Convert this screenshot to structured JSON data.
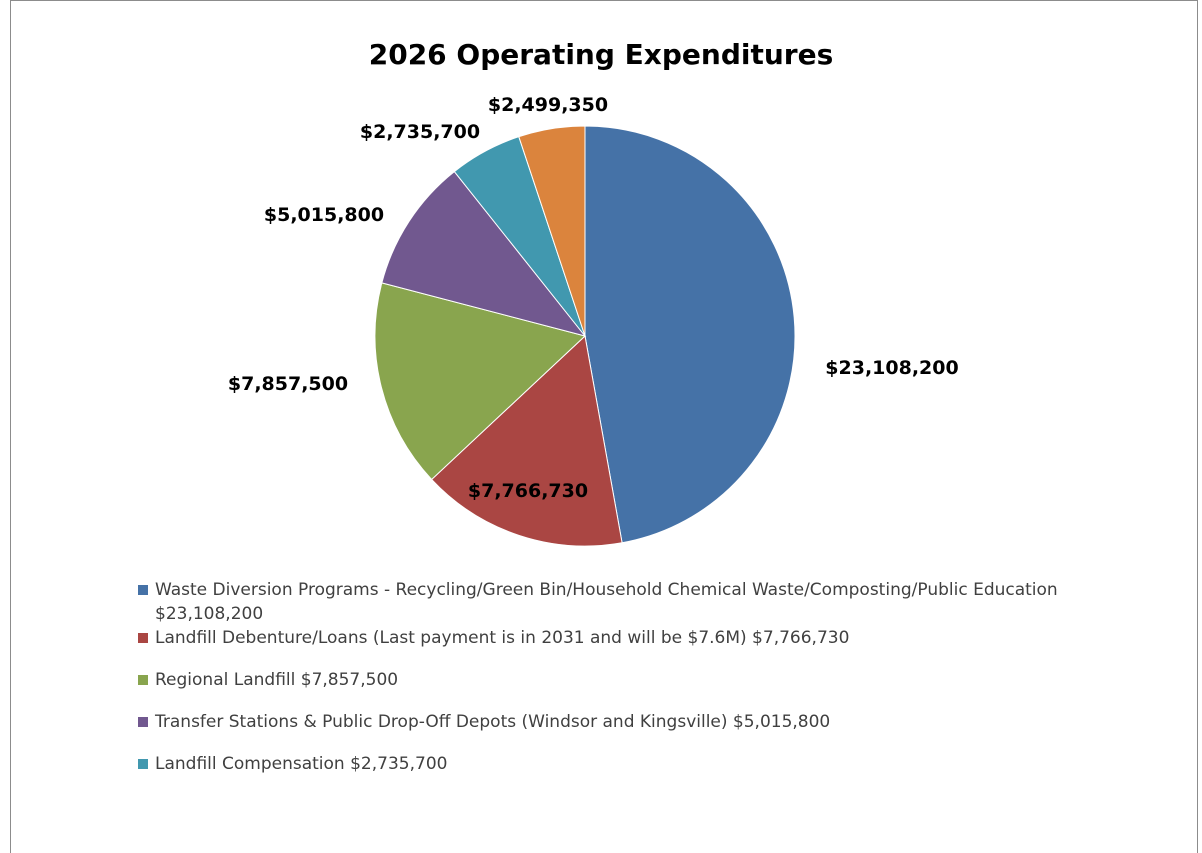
{
  "chart_data": {
    "type": "pie",
    "title": "2026 Operating Expenditures",
    "slices": [
      {
        "label": "Waste Diversion Programs - Recycling/Green Bin/Household Chemical Waste/Composting/Public Education $23,108,200",
        "value": 23108200,
        "data_label": "$23,108,200",
        "color": "#4572A7"
      },
      {
        "label": "Landfill Debenture/Loans (Last payment is in 2031 and will be $7.6M) $7,766,730",
        "value": 7766730,
        "data_label": "$7,766,730",
        "color": "#AA4643"
      },
      {
        "label": "Regional Landfill $7,857,500",
        "value": 7857500,
        "data_label": "$7,857,500",
        "color": "#89A54E"
      },
      {
        "label": "Transfer Stations & Public Drop-Off Depots (Windsor and Kingsville) $5,015,800",
        "value": 5015800,
        "data_label": "$5,015,800",
        "color": "#71588F"
      },
      {
        "label": "Landfill Compensation $2,735,700",
        "value": 2735700,
        "data_label": "$2,735,700",
        "color": "#4198AF"
      },
      {
        "label": "",
        "value": 2499350,
        "data_label": "$2,499,350",
        "color": "#DB843D"
      }
    ],
    "legend_position": "bottom"
  }
}
